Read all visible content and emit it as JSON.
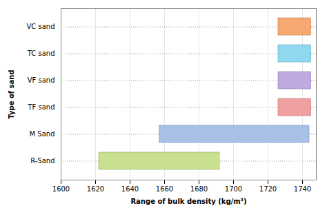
{
  "chart_data": {
    "type": "bar",
    "orientation": "horizontal",
    "categories": [
      "VC sand",
      "TC sand",
      "VF sand",
      "TF sand",
      "M Sand",
      "R-Sand"
    ],
    "values": [
      [
        1726,
        1745
      ],
      [
        1726,
        1745
      ],
      [
        1726,
        1745
      ],
      [
        1726,
        1745
      ],
      [
        1657,
        1744
      ],
      [
        1622,
        1692
      ]
    ],
    "colors": [
      "#F5A870",
      "#90D8F0",
      "#C0A8E0",
      "#F0A0A0",
      "#A8C0E8",
      "#C8E090"
    ],
    "xlabel": "Range of bulk density (kg/m³)",
    "ylabel": "Type of sand",
    "xlim": [
      1600,
      1748
    ],
    "xticks": [
      1600,
      1620,
      1640,
      1660,
      1680,
      1700,
      1720,
      1740
    ],
    "grid": true
  }
}
